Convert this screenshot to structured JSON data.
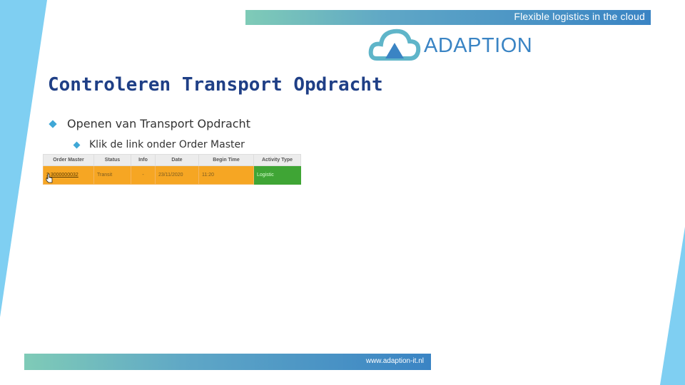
{
  "banner": {
    "tagline": "Flexible logistics in the cloud"
  },
  "logo": {
    "word": "ADAPTION"
  },
  "slide": {
    "title": "Controleren Transport Opdracht",
    "bullets": [
      "Openen van Transport Opdracht",
      "Klik de link onder Order Master"
    ]
  },
  "table": {
    "headers": [
      "Order Master",
      "Status",
      "Info",
      "Date",
      "Begin Time",
      "Activity Type"
    ],
    "rows": [
      {
        "order_master": "2 3000000032",
        "status": "Transit",
        "info": "-",
        "date": "23/11/2020",
        "begin_time": "11:20",
        "activity_type": "Logistic"
      }
    ]
  },
  "footer": {
    "url": "www.adaption-it.nl"
  },
  "colors": {
    "accent": "#3a84c4",
    "title": "#1f3f86",
    "orange": "#f6a623",
    "green": "#3fa535"
  }
}
